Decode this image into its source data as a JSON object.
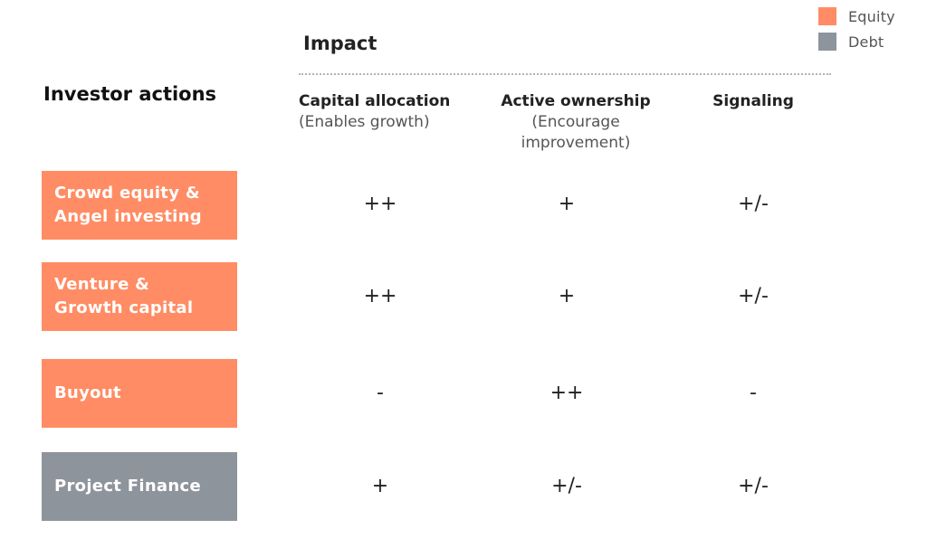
{
  "colors": {
    "equity": "#ff8c64",
    "debt": "#8e949b"
  },
  "legend": [
    {
      "label": "Equity",
      "color": "#ff8c64"
    },
    {
      "label": "Debt",
      "color": "#8e949b"
    }
  ],
  "impact_title": "Impact",
  "actions_title": "Investor actions",
  "columns": [
    {
      "name": "Capital allocation",
      "sub": [
        "(Enables growth)"
      ]
    },
    {
      "name": "Active ownership",
      "sub": [
        "(Encourage",
        "improvement)"
      ]
    },
    {
      "name": "Signaling",
      "sub": []
    }
  ],
  "rows": [
    {
      "label": [
        "Crowd equity &",
        "Angel investing"
      ],
      "type": "equity",
      "values": [
        "++",
        "+",
        "+/-"
      ]
    },
    {
      "label": [
        "Venture &",
        "Growth capital"
      ],
      "type": "equity",
      "values": [
        "++",
        "+",
        "+/-"
      ]
    },
    {
      "label": [
        "Buyout"
      ],
      "type": "equity",
      "values": [
        "-",
        "++",
        "-"
      ]
    },
    {
      "label": [
        "Project Finance"
      ],
      "type": "debt",
      "values": [
        "+",
        "+/-",
        "+/-"
      ]
    }
  ]
}
